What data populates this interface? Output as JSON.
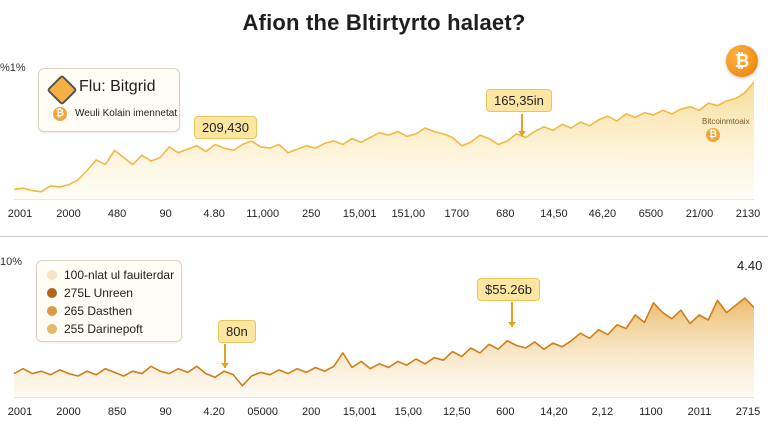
{
  "title": "Afion the Bltirtyrto halaet?",
  "icons": {
    "main_coin": "bitcoin-coin-icon",
    "legend_logo": "cube-logo-icon",
    "legend_coin": "bitcoin-small-icon"
  },
  "colors": {
    "top_line": "#f2b843",
    "top_fill": "#f7d88a",
    "bottom_line": "#cd7f1a",
    "bottom_fill": "#e9b35a",
    "callout_bg": "#fde6a1",
    "coin": "#f2931a"
  },
  "chart_data": [
    {
      "type": "area",
      "y_label_top": "%1%",
      "x_ticks": [
        "2001",
        "2000",
        "480",
        "90",
        "4.80",
        "11,000",
        "250",
        "15,001",
        "151,00",
        "1700",
        "680",
        "14,50",
        "46,20",
        "6500",
        "21/00",
        "2130"
      ],
      "legend": {
        "title": "Flu: Bitgrid",
        "subtitle": "Weuli Kolain imennetat"
      },
      "callouts": [
        "209,430",
        "165,35in"
      ],
      "annotation": "Bitcoinmtoaix",
      "series": [
        {
          "values": [
            0.09,
            0.1,
            0.08,
            0.07,
            0.12,
            0.11,
            0.13,
            0.17,
            0.25,
            0.34,
            0.3,
            0.42,
            0.36,
            0.3,
            0.38,
            0.33,
            0.36,
            0.45,
            0.4,
            0.43,
            0.46,
            0.41,
            0.47,
            0.44,
            0.42,
            0.47,
            0.5,
            0.45,
            0.44,
            0.47,
            0.4,
            0.43,
            0.46,
            0.44,
            0.48,
            0.5,
            0.47,
            0.52,
            0.49,
            0.53,
            0.57,
            0.55,
            0.58,
            0.54,
            0.56,
            0.61,
            0.58,
            0.56,
            0.53,
            0.46,
            0.49,
            0.55,
            0.52,
            0.47,
            0.5,
            0.56,
            0.53,
            0.58,
            0.62,
            0.59,
            0.64,
            0.61,
            0.66,
            0.63,
            0.68,
            0.71,
            0.67,
            0.73,
            0.7,
            0.74,
            0.72,
            0.76,
            0.73,
            0.77,
            0.79,
            0.76,
            0.82,
            0.8,
            0.84,
            0.86,
            0.91,
            1.0
          ]
        }
      ]
    },
    {
      "type": "area",
      "y_label_top": "10%",
      "corner_label": "4.40",
      "x_ticks": [
        "2001",
        "2000",
        "850",
        "90",
        "4.20",
        "05000",
        "200",
        "15,001",
        "15,00",
        "12,50",
        "600",
        "14,20",
        "2,12",
        "1100",
        "2011",
        "2715"
      ],
      "legend": [
        {
          "label": "100-nlat ul fauiterdar",
          "color": "#f6e4c2"
        },
        {
          "label": "275L Unreen",
          "color": "#b3641a"
        },
        {
          "label": "265 Dasthen",
          "color": "#d99a45"
        },
        {
          "label": "255 Darinepoft",
          "color": "#e5b868"
        }
      ],
      "callouts": [
        "80n",
        "$55.26b"
      ],
      "series": [
        {
          "values": [
            0.2,
            0.24,
            0.2,
            0.22,
            0.19,
            0.23,
            0.2,
            0.18,
            0.22,
            0.19,
            0.24,
            0.21,
            0.18,
            0.22,
            0.2,
            0.26,
            0.22,
            0.2,
            0.24,
            0.21,
            0.26,
            0.2,
            0.17,
            0.22,
            0.19,
            0.1,
            0.18,
            0.21,
            0.19,
            0.23,
            0.2,
            0.24,
            0.21,
            0.25,
            0.22,
            0.26,
            0.37,
            0.25,
            0.3,
            0.24,
            0.28,
            0.25,
            0.3,
            0.27,
            0.32,
            0.28,
            0.33,
            0.31,
            0.38,
            0.34,
            0.41,
            0.37,
            0.44,
            0.4,
            0.47,
            0.43,
            0.41,
            0.46,
            0.4,
            0.45,
            0.42,
            0.47,
            0.53,
            0.49,
            0.56,
            0.52,
            0.6,
            0.57,
            0.68,
            0.62,
            0.78,
            0.7,
            0.65,
            0.72,
            0.61,
            0.68,
            0.64,
            0.8,
            0.7,
            0.76,
            0.82,
            0.74
          ]
        }
      ]
    }
  ]
}
